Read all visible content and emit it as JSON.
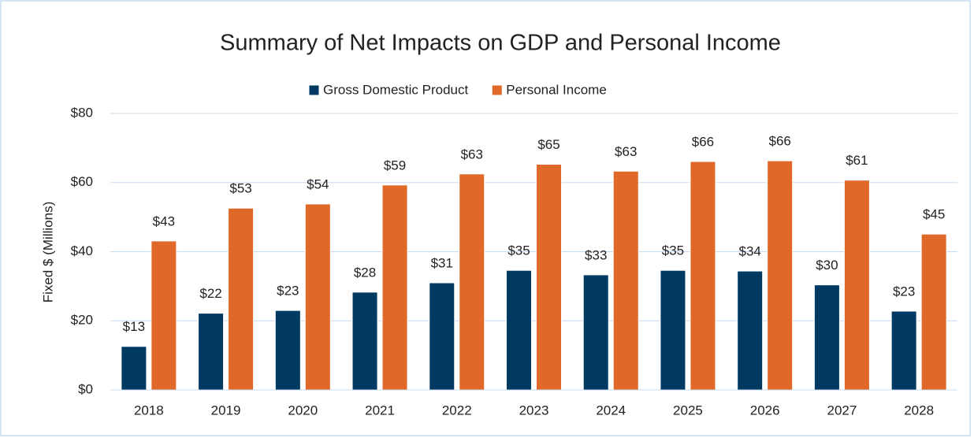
{
  "chart_data": {
    "type": "bar",
    "title": "Summary of Net Impacts on GDP and Personal Income",
    "y_label": "Fixed $ (Millions)",
    "categories": [
      "2018",
      "2019",
      "2020",
      "2021",
      "2022",
      "2023",
      "2024",
      "2025",
      "2026",
      "2027",
      "2028"
    ],
    "series": [
      {
        "name": "Gross Domestic Product",
        "color": "#003a63",
        "values": [
          12.6,
          22.2,
          23.0,
          28.3,
          31.0,
          34.6,
          33.3,
          34.6,
          34.4,
          30.4,
          22.8
        ],
        "value_labels": [
          "$13",
          "$22",
          "$23",
          "$28",
          "$31",
          "$35",
          "$33",
          "$35",
          "$34",
          "$30",
          "$23"
        ]
      },
      {
        "name": "Personal Income",
        "color": "#e0692a",
        "values": [
          43.1,
          52.6,
          53.8,
          59.3,
          62.5,
          65.3,
          63.3,
          66.1,
          66.3,
          60.7,
          45.1
        ],
        "value_labels": [
          "$43",
          "$53",
          "$54",
          "$59",
          "$63",
          "$65",
          "$63",
          "$66",
          "$66",
          "$61",
          "$45"
        ]
      }
    ],
    "ylim": [
      0,
      80
    ],
    "yticks": [
      {
        "value": 0,
        "label": "$0"
      },
      {
        "value": 20,
        "label": "$20"
      },
      {
        "value": 40,
        "label": "$40"
      },
      {
        "value": 60,
        "label": "$60"
      },
      {
        "value": 80,
        "label": "$80"
      }
    ],
    "grid": true,
    "legend": "top"
  }
}
